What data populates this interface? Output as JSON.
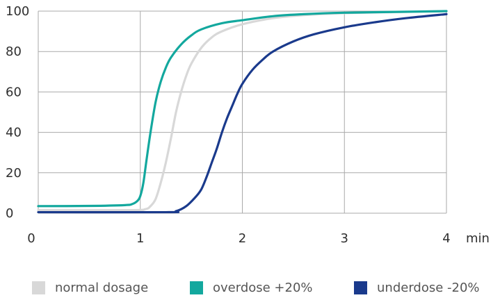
{
  "chart_data": {
    "type": "line",
    "title": "",
    "xlabel": "",
    "ylabel": "",
    "x_unit": "min",
    "xlim": [
      0,
      4
    ],
    "ylim": [
      0,
      100
    ],
    "x_ticks": [
      "0",
      "1",
      "2",
      "3",
      "4"
    ],
    "y_ticks": [
      "0",
      "20",
      "40",
      "60",
      "80",
      "100"
    ],
    "grid": true,
    "legend_position": "bottom",
    "series": [
      {
        "name": "normal dosage",
        "color": "#d8d8d8",
        "points": [
          [
            0,
            1.5
          ],
          [
            0.9,
            1.5
          ],
          [
            1.05,
            2
          ],
          [
            1.1,
            3.5
          ],
          [
            1.15,
            7
          ],
          [
            1.2,
            15
          ],
          [
            1.25,
            25
          ],
          [
            1.3,
            37
          ],
          [
            1.35,
            50
          ],
          [
            1.4,
            60
          ],
          [
            1.45,
            68
          ],
          [
            1.5,
            74
          ],
          [
            1.6,
            82
          ],
          [
            1.7,
            87
          ],
          [
            1.8,
            90
          ],
          [
            2.0,
            93.5
          ],
          [
            2.3,
            96.5
          ],
          [
            2.6,
            98
          ],
          [
            3.0,
            99
          ],
          [
            3.5,
            99.5
          ],
          [
            4.0,
            100
          ]
        ]
      },
      {
        "name": "overdose +20%",
        "color": "#13a89e",
        "points": [
          [
            0,
            3.5
          ],
          [
            0.5,
            3.6
          ],
          [
            0.85,
            4
          ],
          [
            0.92,
            4.5
          ],
          [
            0.97,
            6
          ],
          [
            1.0,
            8.5
          ],
          [
            1.03,
            15
          ],
          [
            1.06,
            26
          ],
          [
            1.1,
            40
          ],
          [
            1.15,
            55
          ],
          [
            1.2,
            65
          ],
          [
            1.25,
            72
          ],
          [
            1.3,
            77
          ],
          [
            1.4,
            83.5
          ],
          [
            1.5,
            88
          ],
          [
            1.6,
            91
          ],
          [
            1.8,
            94
          ],
          [
            2.0,
            95.5
          ],
          [
            2.3,
            97.5
          ],
          [
            2.6,
            98.5
          ],
          [
            3.0,
            99.2
          ],
          [
            3.5,
            99.6
          ],
          [
            4.0,
            100
          ]
        ]
      },
      {
        "name": "underdose -20%",
        "color": "#1a3a8c",
        "points": [
          [
            0,
            0.5
          ],
          [
            1.25,
            0.5
          ],
          [
            1.35,
            1
          ],
          [
            1.45,
            3.5
          ],
          [
            1.55,
            8.5
          ],
          [
            1.6,
            12
          ],
          [
            1.65,
            18
          ],
          [
            1.7,
            25
          ],
          [
            1.75,
            32
          ],
          [
            1.8,
            40
          ],
          [
            1.85,
            47
          ],
          [
            1.9,
            53
          ],
          [
            1.95,
            59
          ],
          [
            2.0,
            64
          ],
          [
            2.1,
            71
          ],
          [
            2.2,
            76
          ],
          [
            2.3,
            80
          ],
          [
            2.5,
            85
          ],
          [
            2.7,
            88.5
          ],
          [
            3.0,
            92
          ],
          [
            3.3,
            94.5
          ],
          [
            3.6,
            96.5
          ],
          [
            4.0,
            98.5
          ]
        ]
      }
    ]
  }
}
